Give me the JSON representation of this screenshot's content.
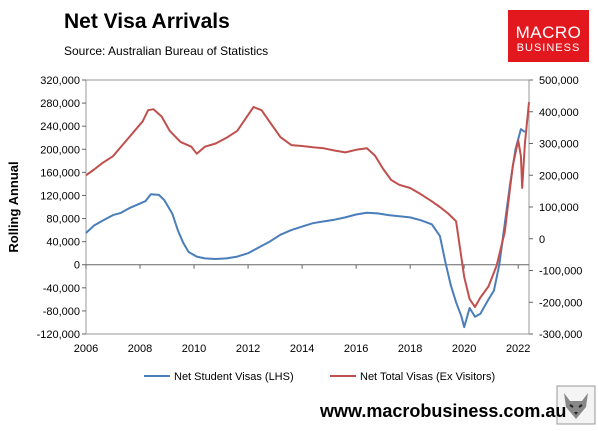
{
  "header": {
    "title": "Net Visa Arrivals",
    "source": "Source: Australian Bureau of Statistics"
  },
  "logo": {
    "line1": "MACRO",
    "line2": "BUSINESS",
    "color": "#e3181f"
  },
  "mascot_icon": "wolf-icon",
  "footer": {
    "url": "www.macrobusiness.com.au"
  },
  "chart_data": {
    "type": "line",
    "title": "Net Visa Arrivals",
    "ylabel": "Rolling Annual",
    "y2label": "",
    "xlabel": "",
    "grid": false,
    "legend_position": "bottom",
    "xlim": [
      2006,
      2022.4
    ],
    "ylim": [
      -120000,
      320000
    ],
    "y2lim": [
      -300000,
      500000
    ],
    "x_ticks": [
      "2006",
      "2008",
      "2010",
      "2012",
      "2014",
      "2016",
      "2018",
      "2020",
      "2022"
    ],
    "y_ticks": [
      "320,000",
      "280,000",
      "240,000",
      "200,000",
      "160,000",
      "120,000",
      "80,000",
      "40,000",
      "0",
      "-40,000",
      "-80,000",
      "-120,000"
    ],
    "y2_ticks": [
      "500,000",
      "400,000",
      "300,000",
      "200,000",
      "100,000",
      "0",
      "-100,000",
      "-200,000",
      "-300,000"
    ],
    "series": [
      {
        "name": "Net Student Visas (LHS)",
        "axis": "left",
        "color": "#4a7ebb",
        "points": [
          [
            2006.0,
            55000
          ],
          [
            2006.3,
            68000
          ],
          [
            2006.6,
            76000
          ],
          [
            2007.0,
            86000
          ],
          [
            2007.3,
            90000
          ],
          [
            2007.6,
            98000
          ],
          [
            2007.9,
            104000
          ],
          [
            2008.2,
            110000
          ],
          [
            2008.4,
            122000
          ],
          [
            2008.7,
            121000
          ],
          [
            2008.9,
            112000
          ],
          [
            2009.2,
            88000
          ],
          [
            2009.4,
            60000
          ],
          [
            2009.6,
            38000
          ],
          [
            2009.8,
            22000
          ],
          [
            2010.1,
            14000
          ],
          [
            2010.4,
            11000
          ],
          [
            2010.8,
            10000
          ],
          [
            2011.2,
            11000
          ],
          [
            2011.6,
            14000
          ],
          [
            2012.0,
            20000
          ],
          [
            2012.4,
            30000
          ],
          [
            2012.8,
            40000
          ],
          [
            2013.2,
            52000
          ],
          [
            2013.6,
            60000
          ],
          [
            2014.0,
            66000
          ],
          [
            2014.4,
            72000
          ],
          [
            2014.8,
            75000
          ],
          [
            2015.2,
            78000
          ],
          [
            2015.6,
            82000
          ],
          [
            2016.0,
            87000
          ],
          [
            2016.4,
            90000
          ],
          [
            2016.8,
            89000
          ],
          [
            2017.2,
            86000
          ],
          [
            2017.6,
            84000
          ],
          [
            2018.0,
            82000
          ],
          [
            2018.4,
            77000
          ],
          [
            2018.8,
            70000
          ],
          [
            2019.1,
            50000
          ],
          [
            2019.3,
            5000
          ],
          [
            2019.5,
            -35000
          ],
          [
            2019.7,
            -65000
          ],
          [
            2019.9,
            -90000
          ],
          [
            2020.0,
            -108000
          ],
          [
            2020.2,
            -75000
          ],
          [
            2020.4,
            -90000
          ],
          [
            2020.6,
            -85000
          ],
          [
            2020.9,
            -60000
          ],
          [
            2021.1,
            -45000
          ],
          [
            2021.3,
            0
          ],
          [
            2021.5,
            70000
          ],
          [
            2021.7,
            140000
          ],
          [
            2021.9,
            200000
          ],
          [
            2022.1,
            235000
          ],
          [
            2022.25,
            230000
          ]
        ]
      },
      {
        "name": "Net Total Visas (Ex Visitors)",
        "axis": "right",
        "color": "#c0504d",
        "points": [
          [
            2006.0,
            200000
          ],
          [
            2006.3,
            218000
          ],
          [
            2006.6,
            238000
          ],
          [
            2007.0,
            260000
          ],
          [
            2007.4,
            300000
          ],
          [
            2007.8,
            340000
          ],
          [
            2008.1,
            370000
          ],
          [
            2008.3,
            405000
          ],
          [
            2008.5,
            408000
          ],
          [
            2008.8,
            385000
          ],
          [
            2009.1,
            340000
          ],
          [
            2009.5,
            305000
          ],
          [
            2009.9,
            290000
          ],
          [
            2010.1,
            268000
          ],
          [
            2010.4,
            290000
          ],
          [
            2010.8,
            300000
          ],
          [
            2011.2,
            318000
          ],
          [
            2011.6,
            340000
          ],
          [
            2012.0,
            390000
          ],
          [
            2012.2,
            415000
          ],
          [
            2012.5,
            405000
          ],
          [
            2012.8,
            368000
          ],
          [
            2013.2,
            320000
          ],
          [
            2013.6,
            295000
          ],
          [
            2014.0,
            292000
          ],
          [
            2014.4,
            288000
          ],
          [
            2014.8,
            285000
          ],
          [
            2015.2,
            278000
          ],
          [
            2015.6,
            272000
          ],
          [
            2016.0,
            280000
          ],
          [
            2016.4,
            285000
          ],
          [
            2016.7,
            262000
          ],
          [
            2017.0,
            220000
          ],
          [
            2017.3,
            185000
          ],
          [
            2017.6,
            170000
          ],
          [
            2018.0,
            160000
          ],
          [
            2018.4,
            140000
          ],
          [
            2018.8,
            118000
          ],
          [
            2019.1,
            100000
          ],
          [
            2019.4,
            80000
          ],
          [
            2019.7,
            55000
          ],
          [
            2020.0,
            -120000
          ],
          [
            2020.2,
            -190000
          ],
          [
            2020.4,
            -215000
          ],
          [
            2020.6,
            -185000
          ],
          [
            2020.9,
            -150000
          ],
          [
            2021.2,
            -85000
          ],
          [
            2021.5,
            20000
          ],
          [
            2021.8,
            230000
          ],
          [
            2022.0,
            310000
          ],
          [
            2022.1,
            260000
          ],
          [
            2022.15,
            160000
          ],
          [
            2022.25,
            300000
          ],
          [
            2022.4,
            430000
          ]
        ]
      }
    ]
  }
}
